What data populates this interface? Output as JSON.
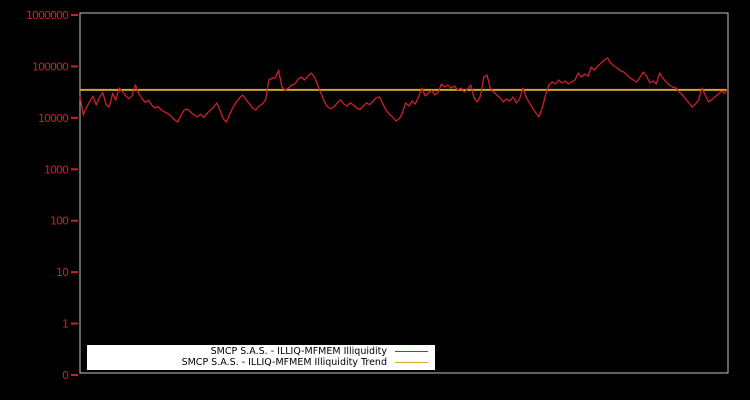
{
  "chart_data": {
    "type": "line",
    "background": "#000000",
    "plot_border_color": "#c6c6c6",
    "grid": false,
    "legend_position": "bottom-left",
    "y_axis": {
      "scale": "log",
      "label_color": "#cc2129",
      "ylim": [
        0.1,
        1000000
      ],
      "ticks": [
        {
          "label": "1000000",
          "value": 1000000
        },
        {
          "label": "100000",
          "value": 100000
        },
        {
          "label": "10000",
          "value": 10000
        },
        {
          "label": "1000",
          "value": 1000
        },
        {
          "label": "100",
          "value": 100
        },
        {
          "label": "10",
          "value": 10
        },
        {
          "label": "1",
          "value": 1
        },
        {
          "label": "0",
          "value": 0.1
        }
      ]
    },
    "x_axis": {
      "ticks": []
    },
    "series": [
      {
        "name": "SMCP S.A.S. - ILLIQ-MFMEM Illiquidity",
        "type": "line",
        "color": "#cc2026",
        "values": [
          26000,
          11300,
          16000,
          21000,
          26500,
          17800,
          25000,
          31000,
          18000,
          16200,
          30000,
          22000,
          38000,
          33000,
          27000,
          23500,
          27000,
          44000,
          30000,
          24000,
          20000,
          22000,
          17800,
          15500,
          16500,
          14200,
          13000,
          12000,
          10800,
          9200,
          8300,
          11000,
          14200,
          14800,
          12800,
          11400,
          10400,
          11800,
          10200,
          12200,
          14000,
          16200,
          19500,
          14000,
          9500,
          8300,
          12000,
          16000,
          20400,
          24400,
          27800,
          22400,
          19000,
          15500,
          14200,
          17000,
          18600,
          22400,
          54500,
          59000,
          60000,
          85000,
          40000,
          34500,
          38000,
          43500,
          45600,
          57000,
          62000,
          54500,
          65000,
          74500,
          62000,
          43500,
          30000,
          21000,
          16500,
          15000,
          16500,
          19500,
          22400,
          18600,
          17000,
          19500,
          17800,
          15500,
          14500,
          17000,
          19500,
          18000,
          21300,
          24400,
          25600,
          18600,
          14200,
          11800,
          10400,
          8700,
          9500,
          12400,
          19500,
          17000,
          21300,
          18600,
          26000,
          38000,
          26700,
          30300,
          34500,
          27800,
          31800,
          45600,
          39800,
          43500,
          38000,
          41600,
          34500,
          38000,
          31800,
          36300,
          43500,
          24400,
          20400,
          26700,
          62000,
          68000,
          38000,
          31800,
          27800,
          24400,
          20400,
          23300,
          21300,
          25600,
          19500,
          23300,
          38000,
          25600,
          19500,
          15500,
          12400,
          10500,
          16000,
          28000,
          43500,
          50000,
          45600,
          54500,
          47700,
          52100,
          45600,
          50000,
          54500,
          74500,
          62000,
          71200,
          65000,
          97000,
          85000,
          102000,
          116000,
          133000,
          146000,
          116000,
          102000,
          93000,
          82000,
          78000,
          68000,
          59000,
          54500,
          50000,
          62000,
          78000,
          65000,
          47700,
          52100,
          45600,
          74500,
          59000,
          50000,
          43500,
          39800,
          38000,
          31800,
          27800,
          23300,
          19500,
          16200,
          18600,
          22400,
          38000,
          27800,
          20400,
          22400,
          25600,
          29000,
          33200,
          30000,
          38000
        ]
      },
      {
        "name": "SMCP S.A.S. - ILLIQ-MFMEM Illiquidity Trend",
        "type": "horizontal-line",
        "color": "#d2a52c",
        "value": 35000
      }
    ]
  }
}
